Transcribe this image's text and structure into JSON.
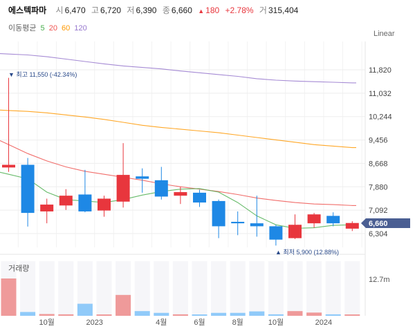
{
  "header": {
    "stock_name": "에스텍파마",
    "open_label": "시",
    "open_value": "6,470",
    "high_label": "고",
    "high_value": "6,720",
    "low_label": "저",
    "low_value": "6,390",
    "close_label": "종",
    "close_value": "6,660",
    "change_arrow": "▲",
    "change_value": "180",
    "change_pct": "+2.78%",
    "volume_label": "거",
    "volume_value": "315,404"
  },
  "moving_average": {
    "label": "이동평균",
    "periods": [
      {
        "value": "5",
        "color": "#4caf50"
      },
      {
        "value": "20",
        "color": "#ef5350"
      },
      {
        "value": "60",
        "color": "#ff9800"
      },
      {
        "value": "120",
        "color": "#9575cd"
      }
    ]
  },
  "scale_button": "Linear",
  "annotations": {
    "high": "▼ 최고 11,550 (-42.34%)",
    "low": "▲ 최저 5,900 (12.88%)"
  },
  "current_price_tag": "6,660",
  "volume_panel": {
    "label": "거래량",
    "axis_label": "12.7m"
  },
  "colors": {
    "up": "#e8363d",
    "down": "#1e88e5",
    "price_tag": "#4a5e92"
  },
  "chart_data": {
    "type": "candlestick",
    "y_ticks": [
      "11,820",
      "11,032",
      "10,244",
      "9,456",
      "8,668",
      "7,880",
      "7,092",
      "6,304"
    ],
    "y_tick_values": [
      11820,
      11032,
      10244,
      9456,
      8668,
      7880,
      7092,
      6304
    ],
    "x_ticks": [
      {
        "label": "10월",
        "index": 2
      },
      {
        "label": "2023",
        "index": 4.5
      },
      {
        "label": "4월",
        "index": 8
      },
      {
        "label": "6월",
        "index": 10
      },
      {
        "label": "8월",
        "index": 12
      },
      {
        "label": "10월",
        "index": 14
      },
      {
        "label": "2024",
        "index": 16.5
      }
    ],
    "candles": [
      {
        "o": 8530,
        "h": 11550,
        "l": 8380,
        "c": 8620,
        "dir": "up"
      },
      {
        "o": 8620,
        "h": 8850,
        "l": 6540,
        "c": 7000,
        "dir": "down"
      },
      {
        "o": 7050,
        "h": 7480,
        "l": 6650,
        "c": 7280,
        "dir": "up"
      },
      {
        "o": 7250,
        "h": 7800,
        "l": 7100,
        "c": 7580,
        "dir": "up"
      },
      {
        "o": 7620,
        "h": 8450,
        "l": 7020,
        "c": 7050,
        "dir": "down"
      },
      {
        "o": 7080,
        "h": 7580,
        "l": 6870,
        "c": 7480,
        "dir": "up"
      },
      {
        "o": 7380,
        "h": 9350,
        "l": 7180,
        "c": 8280,
        "dir": "up"
      },
      {
        "o": 8230,
        "h": 8500,
        "l": 7680,
        "c": 8150,
        "dir": "down"
      },
      {
        "o": 8100,
        "h": 8550,
        "l": 7450,
        "c": 7550,
        "dir": "down"
      },
      {
        "o": 7580,
        "h": 7880,
        "l": 7300,
        "c": 7700,
        "dir": "up"
      },
      {
        "o": 7680,
        "h": 7780,
        "l": 7200,
        "c": 7350,
        "dir": "down"
      },
      {
        "o": 7400,
        "h": 7450,
        "l": 6150,
        "c": 6550,
        "dir": "down"
      },
      {
        "o": 6700,
        "h": 7050,
        "l": 6250,
        "c": 6650,
        "dir": "down"
      },
      {
        "o": 6650,
        "h": 7580,
        "l": 6200,
        "c": 6550,
        "dir": "down"
      },
      {
        "o": 6550,
        "h": 6600,
        "l": 5900,
        "c": 6100,
        "dir": "down"
      },
      {
        "o": 6150,
        "h": 6950,
        "l": 6120,
        "c": 6600,
        "dir": "up"
      },
      {
        "o": 6650,
        "h": 7000,
        "l": 6500,
        "c": 6950,
        "dir": "up"
      },
      {
        "o": 6900,
        "h": 7020,
        "l": 6550,
        "c": 6650,
        "dir": "down"
      },
      {
        "o": 6470,
        "h": 6720,
        "l": 6390,
        "c": 6660,
        "dir": "up"
      }
    ],
    "ma5": [
      8300,
      8150,
      7700,
      7450,
      7400,
      7350,
      7450,
      7600,
      7720,
      7800,
      7820,
      7700,
      7350,
      6900,
      6600,
      6480,
      6500,
      6580,
      6600
    ],
    "ma20": [
      9300,
      9000,
      8750,
      8550,
      8400,
      8300,
      8200,
      8100,
      7980,
      7880,
      7800,
      7720,
      7620,
      7500,
      7420,
      7350,
      7300,
      7280,
      7250
    ],
    "ma60": [
      10450,
      10420,
      10370,
      10300,
      10230,
      10150,
      10050,
      9950,
      9880,
      9820,
      9760,
      9700,
      9620,
      9540,
      9460,
      9380,
      9300,
      9250,
      9200
    ],
    "ma120": [
      12350,
      12320,
      12260,
      12180,
      12100,
      12020,
      11950,
      11900,
      11850,
      11780,
      11720,
      11660,
      11600,
      11520,
      11470,
      11440,
      11420,
      11400,
      11380
    ],
    "volume": {
      "max": 12.7,
      "values": [
        12.7,
        1.3,
        0.6,
        0.5,
        4.1,
        0.3,
        7.1,
        1.6,
        1.0,
        0.5,
        0.4,
        1.0,
        1.0,
        1.5,
        0.5,
        1.6,
        1.1,
        0.5,
        0.4
      ],
      "dir": [
        "up",
        "down",
        "up",
        "up",
        "down",
        "up",
        "up",
        "down",
        "down",
        "up",
        "down",
        "down",
        "down",
        "down",
        "down",
        "up",
        "up",
        "down",
        "up"
      ]
    }
  }
}
